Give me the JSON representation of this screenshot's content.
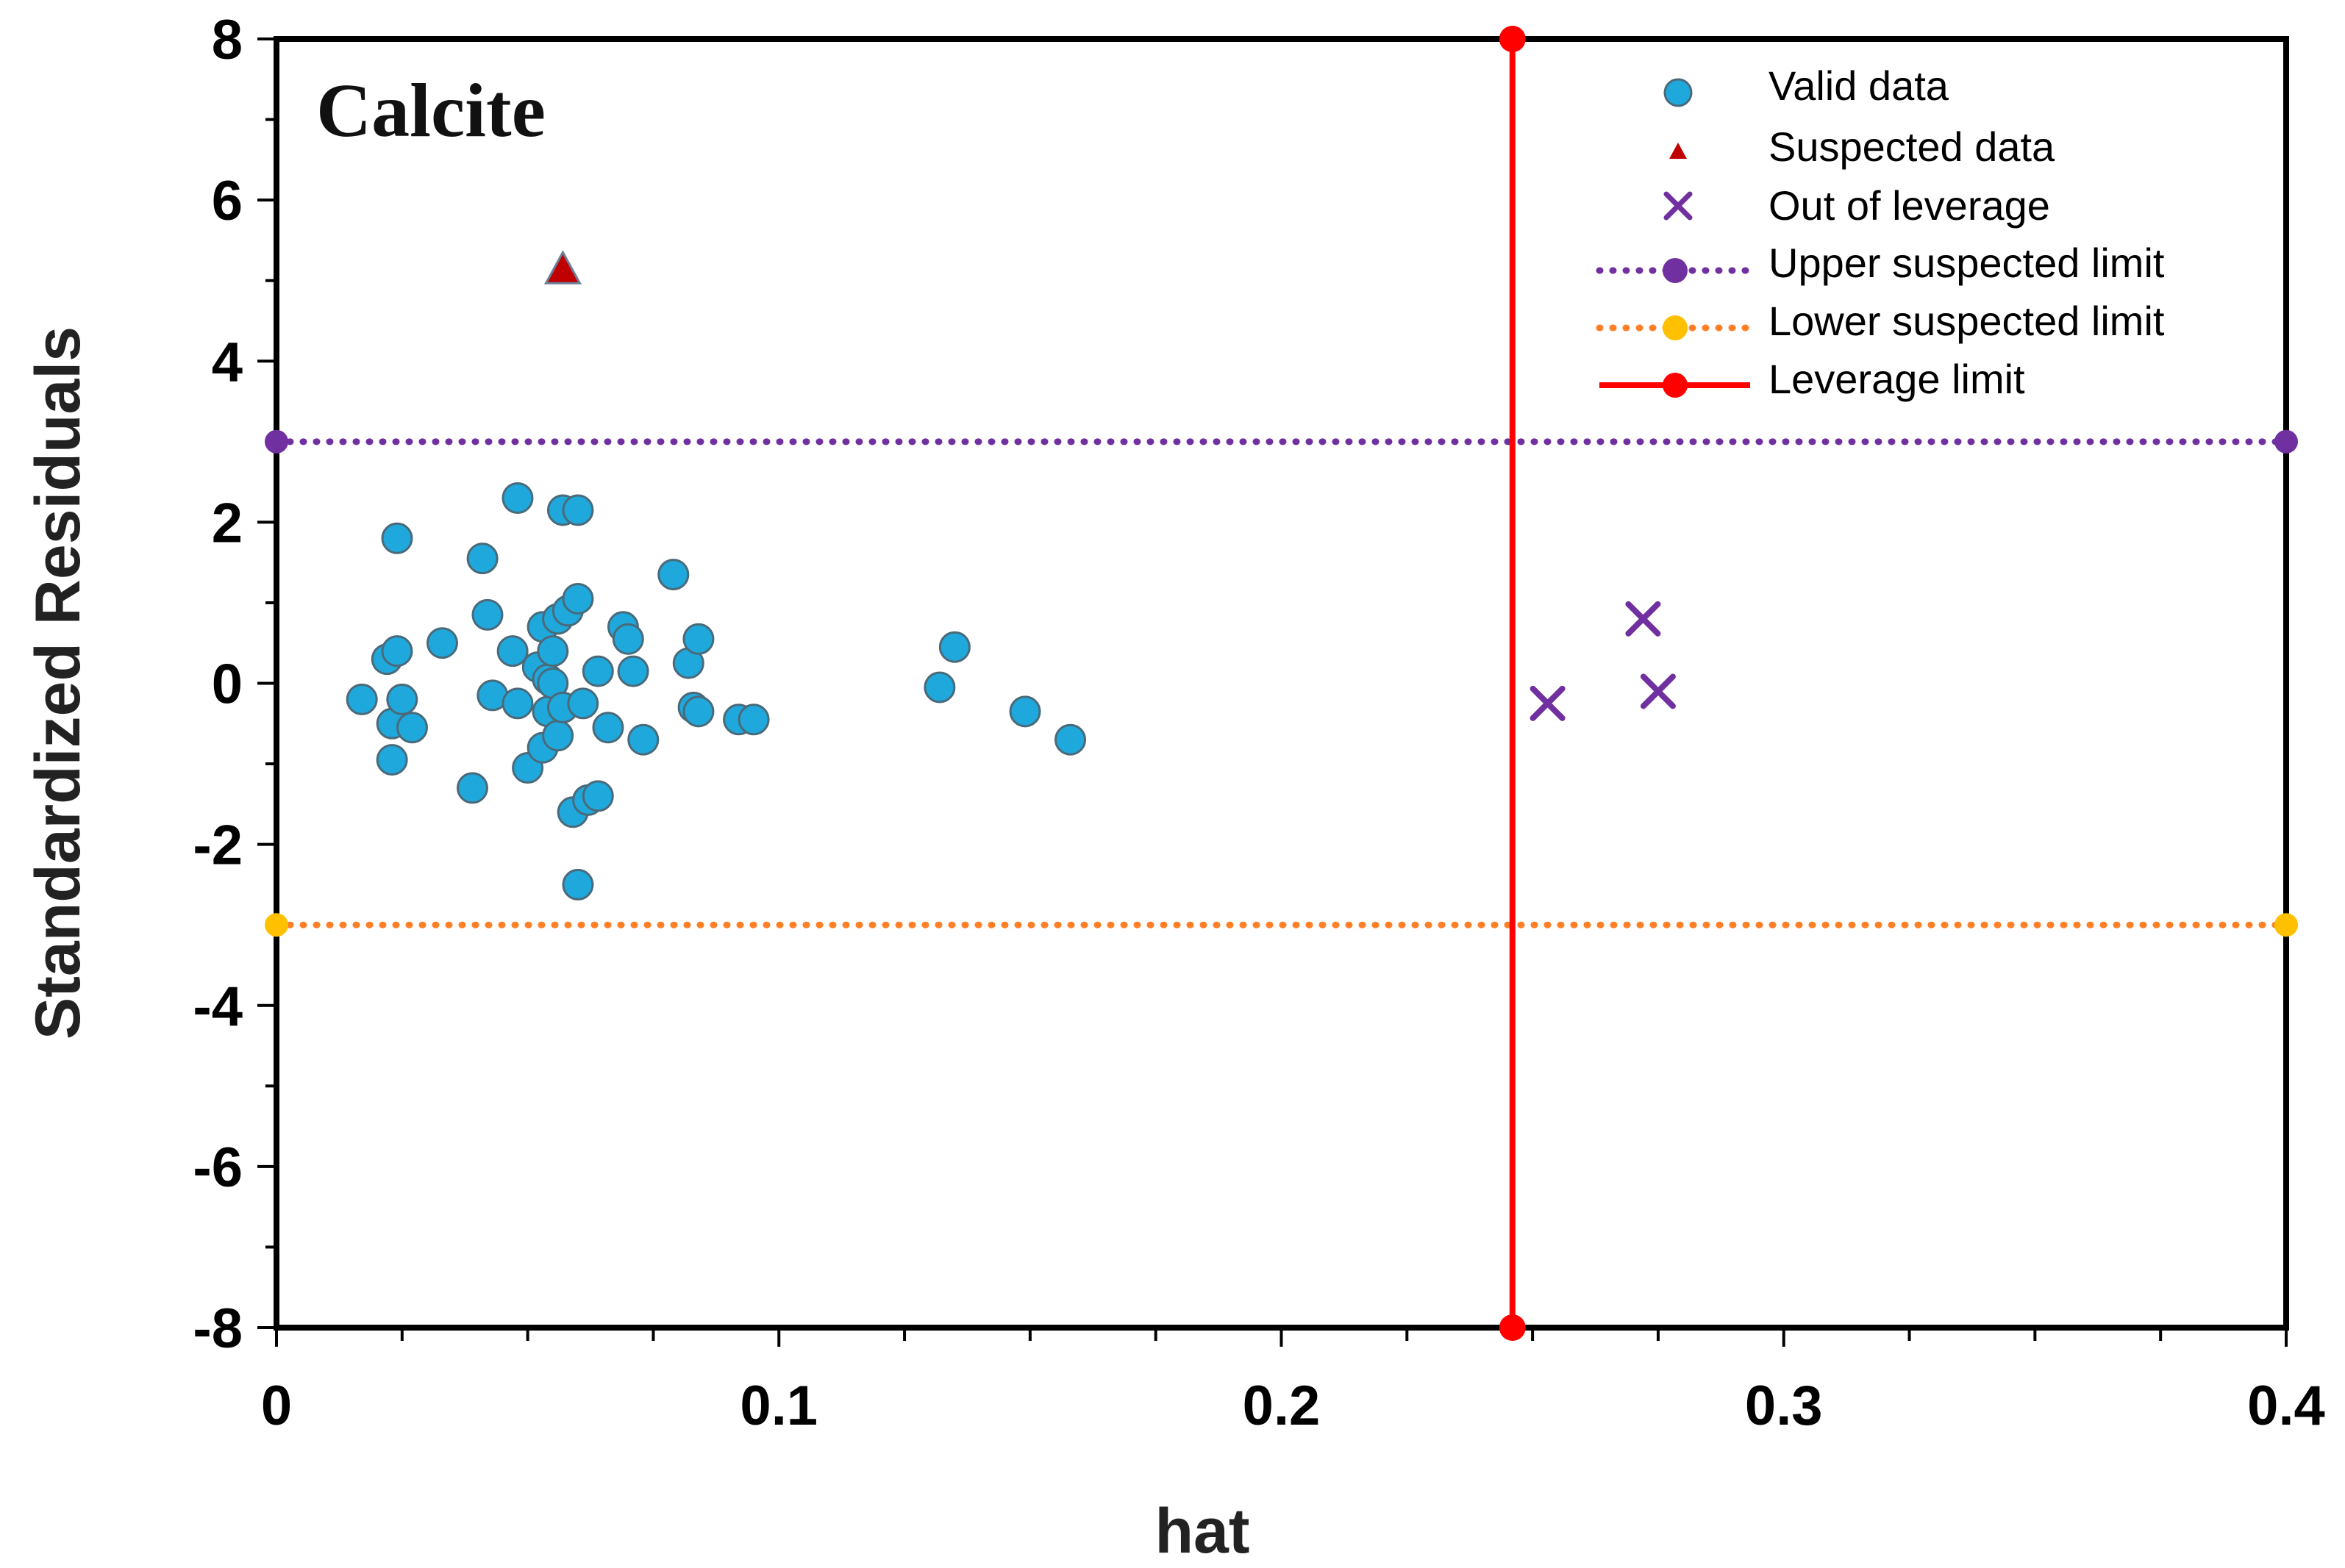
{
  "chart_data": {
    "type": "scatter",
    "title": "Calcite",
    "xlabel": "hat",
    "ylabel": "Standardized Residuals",
    "xlim": [
      0,
      0.4
    ],
    "ylim": [
      -8,
      8
    ],
    "x_ticks": [
      "0",
      "0.1",
      "0.2",
      "0.3",
      "0.4"
    ],
    "y_ticks": [
      "8",
      "6",
      "4",
      "2",
      "0",
      "-2",
      "-4",
      "-6",
      "-8"
    ],
    "grid": false,
    "legend_position": "top-right",
    "colors": {
      "valid": "#1fa8dc",
      "suspected": "#c00000",
      "out_of_leverage": "#7030a0",
      "upper_limit": "#7030a0",
      "lower_limit": "#ff7f27",
      "leverage_limit": "#ff0000"
    },
    "series": [
      {
        "name": "Valid data",
        "marker": "circle",
        "points": [
          [
            0.017,
            -0.2
          ],
          [
            0.022,
            0.3
          ],
          [
            0.023,
            -0.5
          ],
          [
            0.023,
            -0.95
          ],
          [
            0.024,
            0.4
          ],
          [
            0.024,
            1.8
          ],
          [
            0.025,
            -0.2
          ],
          [
            0.027,
            -0.55
          ],
          [
            0.033,
            0.5
          ],
          [
            0.039,
            -1.3
          ],
          [
            0.041,
            1.55
          ],
          [
            0.042,
            0.85
          ],
          [
            0.043,
            -0.15
          ],
          [
            0.047,
            0.4
          ],
          [
            0.048,
            -0.25
          ],
          [
            0.048,
            2.3
          ],
          [
            0.05,
            -1.05
          ],
          [
            0.052,
            0.2
          ],
          [
            0.053,
            0.7
          ],
          [
            0.053,
            -0.8
          ],
          [
            0.054,
            0.05
          ],
          [
            0.054,
            -0.35
          ],
          [
            0.055,
            0.4
          ],
          [
            0.055,
            0.0
          ],
          [
            0.056,
            -0.65
          ],
          [
            0.056,
            0.8
          ],
          [
            0.057,
            2.15
          ],
          [
            0.057,
            -0.3
          ],
          [
            0.058,
            0.9
          ],
          [
            0.059,
            -1.6
          ],
          [
            0.06,
            2.15
          ],
          [
            0.06,
            1.05
          ],
          [
            0.06,
            -2.5
          ],
          [
            0.061,
            -0.25
          ],
          [
            0.062,
            -1.45
          ],
          [
            0.064,
            -1.4
          ],
          [
            0.064,
            0.15
          ],
          [
            0.066,
            -0.55
          ],
          [
            0.069,
            0.7
          ],
          [
            0.07,
            0.55
          ],
          [
            0.071,
            0.15
          ],
          [
            0.073,
            -0.7
          ],
          [
            0.079,
            1.35
          ],
          [
            0.082,
            0.25
          ],
          [
            0.083,
            -0.3
          ],
          [
            0.084,
            0.55
          ],
          [
            0.084,
            -0.35
          ],
          [
            0.092,
            -0.45
          ],
          [
            0.095,
            -0.45
          ],
          [
            0.132,
            -0.05
          ],
          [
            0.135,
            0.45
          ],
          [
            0.149,
            -0.35
          ],
          [
            0.158,
            -0.7
          ]
        ]
      },
      {
        "name": "Suspected data",
        "marker": "triangle",
        "points": [
          [
            0.057,
            5.15
          ]
        ]
      },
      {
        "name": "Out of leverage",
        "marker": "x",
        "points": [
          [
            0.253,
            -0.25
          ],
          [
            0.272,
            0.8
          ],
          [
            0.275,
            -0.1
          ]
        ]
      },
      {
        "name": "Upper suspected limit",
        "marker": "dotted-line",
        "points": [
          [
            0,
            3
          ],
          [
            0.4,
            3
          ]
        ]
      },
      {
        "name": "Lower suspected limit",
        "marker": "dotted-line",
        "points": [
          [
            0,
            -3
          ],
          [
            0.4,
            -3
          ]
        ]
      },
      {
        "name": "Leverage limit",
        "marker": "solid-line",
        "points": [
          [
            0.246,
            8
          ],
          [
            0.246,
            -8
          ]
        ]
      }
    ]
  }
}
